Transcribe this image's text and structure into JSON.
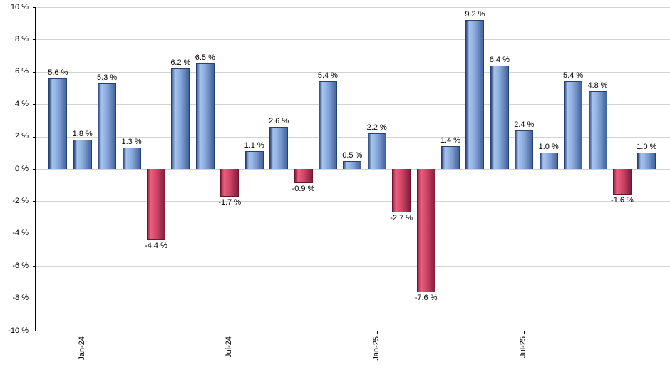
{
  "chart_data": {
    "type": "bar",
    "title": "",
    "xlabel": "",
    "ylabel": "",
    "ylim": [
      -10,
      10
    ],
    "grid": true,
    "legend_position": "none",
    "values": [
      5.6,
      1.8,
      5.3,
      1.3,
      -4.4,
      6.2,
      6.5,
      -1.7,
      1.1,
      2.6,
      -0.9,
      5.4,
      0.5,
      2.2,
      -2.7,
      -7.6,
      1.4,
      9.2,
      6.4,
      2.4,
      1.0,
      5.4,
      4.8,
      -1.6,
      1.0
    ],
    "bar_labels": [
      "5.6 %",
      "1.8 %",
      "5.3 %",
      "1.3 %",
      "-4.4 %",
      "6.2 %",
      "6.5 %",
      "-1.7 %",
      "1.1 %",
      "2.6 %",
      "-0.9 %",
      "5.4 %",
      "0.5 %",
      "2.2 %",
      "-2.7 %",
      "-7.6 %",
      "1.4 %",
      "9.2 %",
      "6.4 %",
      "2.4 %",
      "1.0 %",
      "5.4 %",
      "4.8 %",
      "-1.6 %",
      "1.0 %"
    ],
    "y_ticks": [
      {
        "value": 10,
        "label": "10 %"
      },
      {
        "value": 8,
        "label": "8 %"
      },
      {
        "value": 6,
        "label": "6 %"
      },
      {
        "value": 4,
        "label": "4 %"
      },
      {
        "value": 2,
        "label": "2 %"
      },
      {
        "value": 0,
        "label": "0 %"
      },
      {
        "value": -2,
        "label": "-2 %"
      },
      {
        "value": -4,
        "label": "-4 %"
      },
      {
        "value": -6,
        "label": "-6 %"
      },
      {
        "value": -8,
        "label": "-8 %"
      },
      {
        "value": -10,
        "label": "-10 %"
      }
    ],
    "x_ticks": [
      {
        "bar_index": 1,
        "label": "Jan-24"
      },
      {
        "bar_index": 7,
        "label": "Jul-24"
      },
      {
        "bar_index": 13,
        "label": "Jan-25"
      },
      {
        "bar_index": 19,
        "label": "Jul-25"
      }
    ],
    "colors": {
      "positive_bar": "#88abdd",
      "positive_bar_edge": "#24416f",
      "negative_bar": "#d04a68",
      "negative_bar_edge": "#6e1430",
      "gridline": "#d3d3d3",
      "axis": "#000000",
      "label_text": "#000000",
      "background": "#ffffff"
    }
  }
}
